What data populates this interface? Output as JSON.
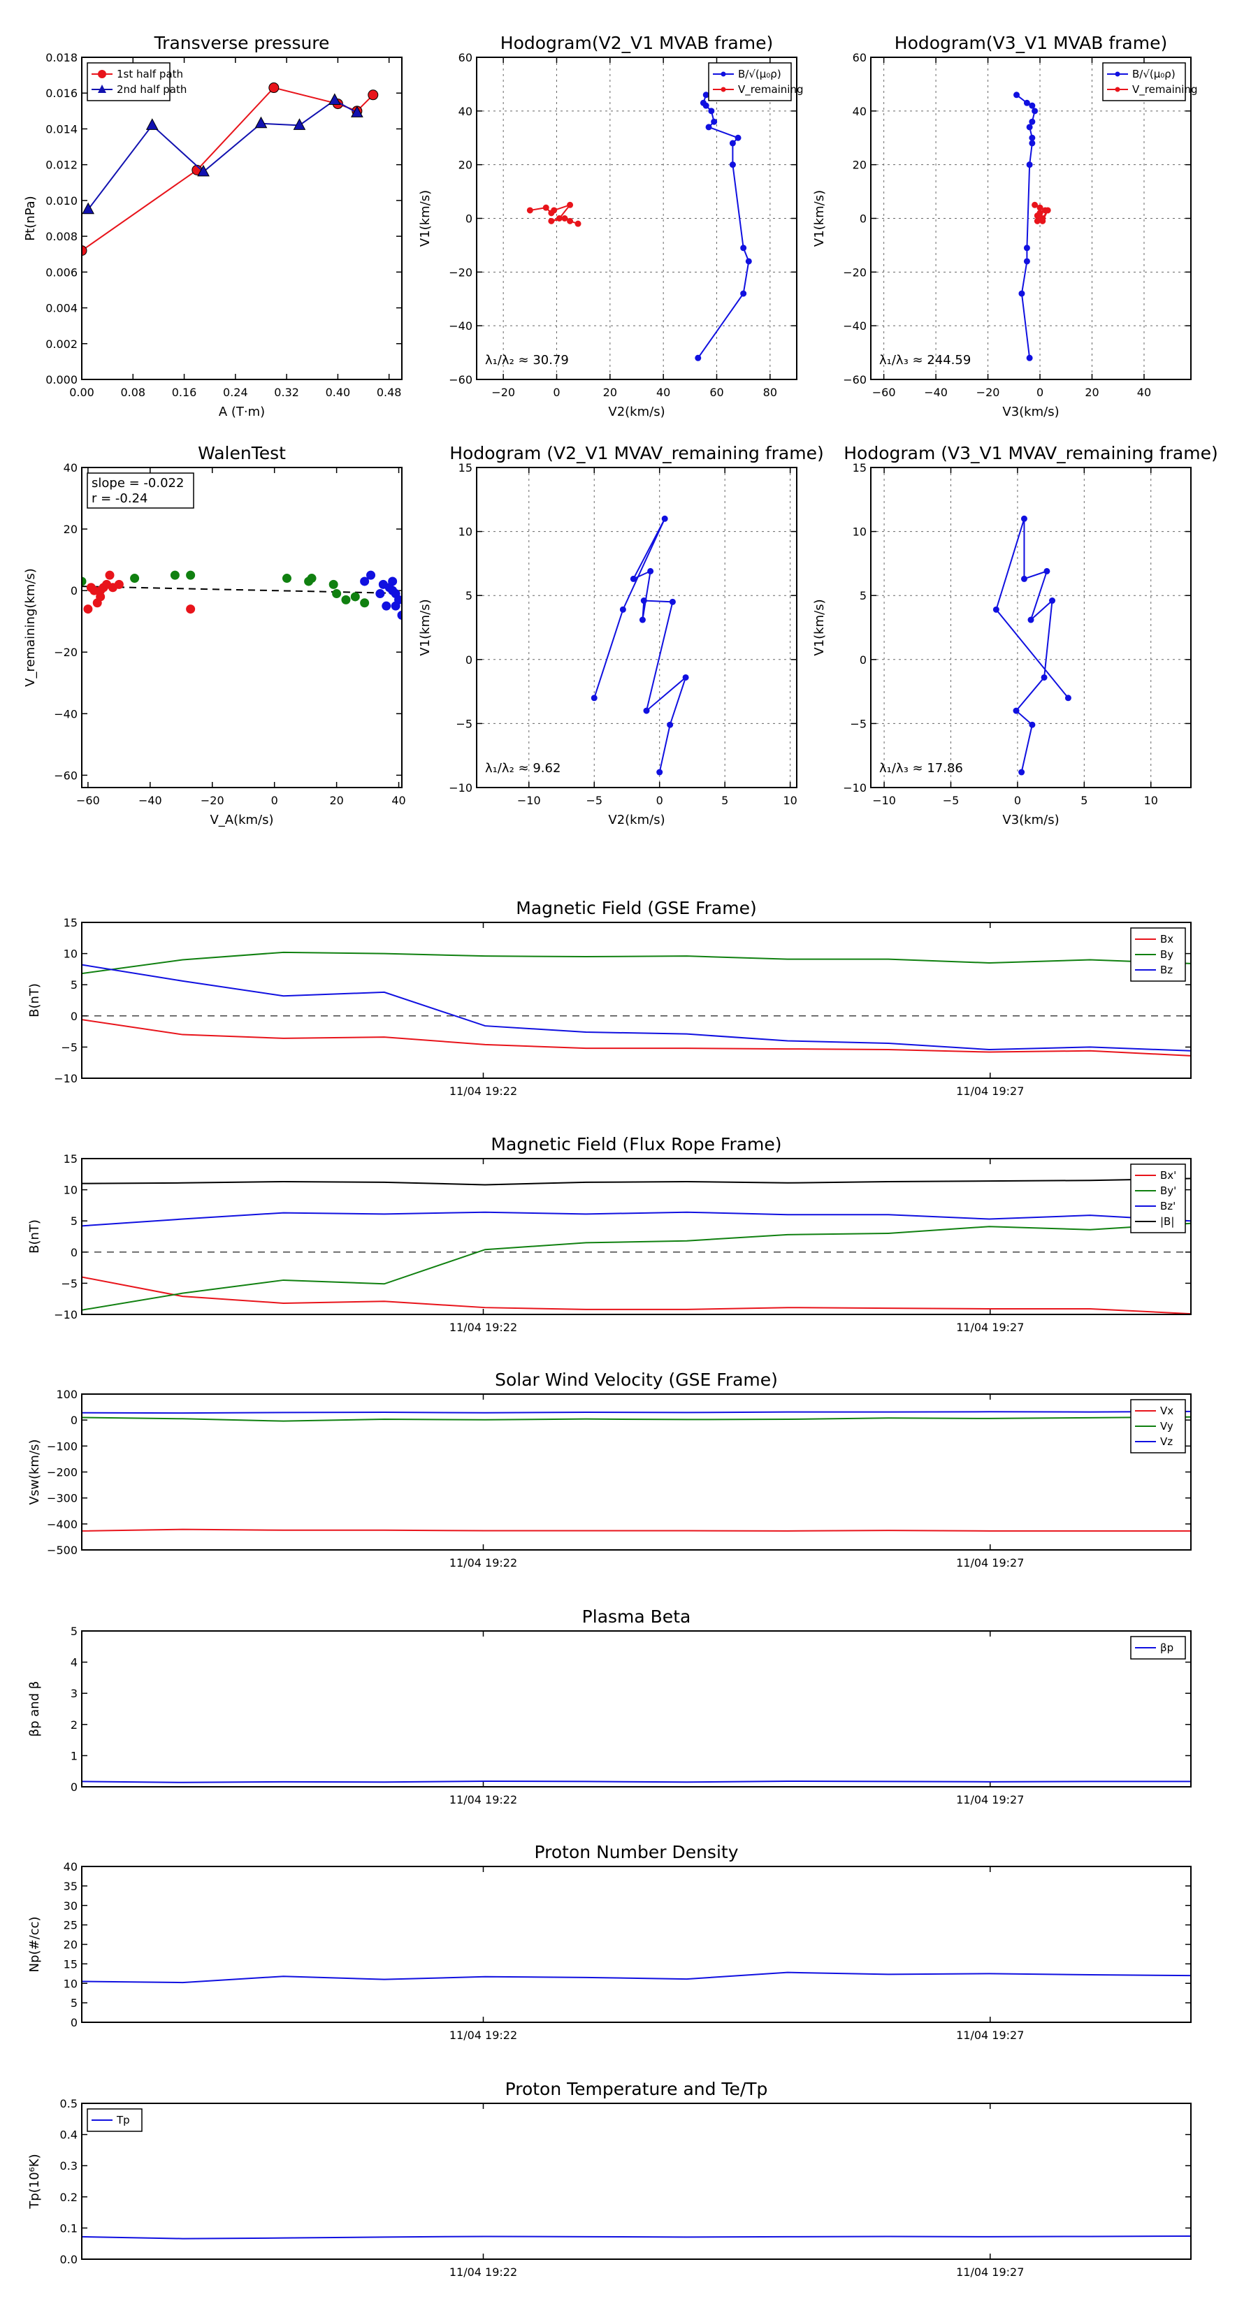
{
  "chart_data": [
    {
      "id": "p1",
      "type": "line",
      "title": "Transverse pressure",
      "xlabel": "A (T·m)",
      "ylabel": "Pt(nPa)",
      "xlim": [
        0,
        0.5
      ],
      "ylim": [
        0,
        0.018
      ],
      "xticks": [
        0,
        0.08,
        0.16,
        0.24,
        0.32,
        0.4,
        0.48
      ],
      "xticklabels": [
        "0.00",
        "0.08",
        "0.16",
        "0.24",
        "0.32",
        "0.40",
        "0.48"
      ],
      "yticks": [
        0,
        0.002,
        0.004,
        0.006,
        0.008,
        0.01,
        0.012,
        0.014,
        0.016,
        0.018
      ],
      "yticklabels": [
        "0.000",
        "0.002",
        "0.004",
        "0.006",
        "0.008",
        "0.010",
        "0.012",
        "0.014",
        "0.016",
        "0.018"
      ],
      "grid": false,
      "legend": "top-left",
      "series": [
        {
          "name": "1st half path",
          "color": "#e8141b",
          "marker": "circle",
          "x": [
            0.0,
            0.18,
            0.3,
            0.4,
            0.43,
            0.455
          ],
          "y": [
            0.0072,
            0.0117,
            0.0163,
            0.0154,
            0.015,
            0.0159
          ]
        },
        {
          "name": "2nd half path",
          "color": "#1212b0",
          "marker": "triangle",
          "x": [
            0.01,
            0.11,
            0.19,
            0.28,
            0.34,
            0.395,
            0.43
          ],
          "y": [
            0.0095,
            0.0142,
            0.0116,
            0.0143,
            0.0142,
            0.0156,
            0.0149
          ]
        }
      ]
    },
    {
      "id": "p2",
      "type": "line",
      "title": "Hodogram(V2_V1 MVAB frame)",
      "xlabel": "V2(km/s)",
      "ylabel": "V1(km/s)",
      "xlim": [
        -30,
        90
      ],
      "ylim": [
        -60,
        60
      ],
      "xticks": [
        -20,
        0,
        20,
        40,
        60,
        80
      ],
      "xticklabels": [
        "−20",
        "0",
        "20",
        "40",
        "60",
        "80"
      ],
      "yticks": [
        -60,
        -40,
        -20,
        0,
        20,
        40,
        60
      ],
      "yticklabels": [
        "−60",
        "−40",
        "−20",
        "0",
        "20",
        "40",
        "60"
      ],
      "grid": true,
      "legend": "top-right",
      "annotation": "λ₁/λ₂ ≈ 30.79",
      "series": [
        {
          "name": "B/√(μ₀ρ)",
          "color": "#1010e0",
          "x": [
            53,
            70,
            72,
            70,
            66,
            66,
            68,
            57,
            59,
            58,
            56,
            55,
            56
          ],
          "y": [
            -52,
            -28,
            -16,
            -11,
            20,
            28,
            30,
            34,
            36,
            40,
            42,
            43,
            46
          ]
        },
        {
          "name": "V_remaining",
          "color": "#e8141b",
          "x": [
            -10,
            -4,
            -2,
            -1,
            5,
            1,
            -2,
            3,
            5,
            8
          ],
          "y": [
            3,
            4,
            2,
            3,
            5,
            0,
            -1,
            0,
            -1,
            -2
          ]
        }
      ]
    },
    {
      "id": "p3",
      "type": "line",
      "title": "Hodogram(V3_V1 MVAB frame)",
      "xlabel": "V3(km/s)",
      "ylabel": "V1(km/s)",
      "xlim": [
        -65,
        58
      ],
      "ylim": [
        -60,
        60
      ],
      "xticks": [
        -60,
        -40,
        -20,
        0,
        20,
        40
      ],
      "xticklabels": [
        "−60",
        "−40",
        "−20",
        "0",
        "20",
        "40"
      ],
      "yticks": [
        -60,
        -40,
        -20,
        0,
        20,
        40,
        60
      ],
      "yticklabels": [
        "−60",
        "−40",
        "−20",
        "0",
        "20",
        "40",
        "60"
      ],
      "grid": true,
      "legend": "top-right",
      "annotation": "λ₁/λ₃ ≈ 244.59",
      "series": [
        {
          "name": "B/√(μ₀ρ)",
          "color": "#1010e0",
          "x": [
            -4,
            -7,
            -5,
            -5,
            -4,
            -3,
            -3,
            -4,
            -3,
            -2,
            -3,
            -5,
            -9
          ],
          "y": [
            -52,
            -28,
            -16,
            -11,
            20,
            28,
            30,
            34,
            36,
            40,
            42,
            43,
            46
          ]
        },
        {
          "name": "V_remaining",
          "color": "#e8141b",
          "x": [
            -2,
            0,
            2,
            0,
            -1,
            1,
            3,
            1,
            -1,
            0
          ],
          "y": [
            5,
            4,
            3,
            2,
            1,
            0,
            3,
            -1,
            -1,
            2
          ]
        }
      ]
    },
    {
      "id": "p4",
      "type": "scatter",
      "title": "WalenTest",
      "xlabel": "V_A(km/s)",
      "ylabel": "V_remaining(km/s)",
      "xlim": [
        -62,
        41
      ],
      "ylim": [
        -64,
        40
      ],
      "xticks": [
        -60,
        -40,
        -20,
        0,
        20,
        40
      ],
      "xticklabels": [
        "−60",
        "−40",
        "−20",
        "0",
        "20",
        "40"
      ],
      "yticks": [
        -60,
        -40,
        -20,
        0,
        20,
        40
      ],
      "yticklabels": [
        "−60",
        "−40",
        "−20",
        "0",
        "20",
        "40"
      ],
      "grid": false,
      "annotation_lines": [
        "slope = -0.022",
        "r = -0.24"
      ],
      "fit": {
        "slope": -0.022,
        "x": [
          -62,
          41
        ]
      },
      "series": [
        {
          "name": "",
          "color": "#e8141b",
          "x": [
            -60,
            -59,
            -58,
            -57,
            -56,
            -56,
            -55,
            -54,
            -53,
            -52,
            -50,
            -27
          ],
          "y": [
            -6,
            1,
            0,
            -4,
            -2,
            0,
            1,
            2,
            5,
            1,
            2,
            -6
          ]
        },
        {
          "name": "",
          "color": "#108010",
          "x": [
            -62,
            -45,
            -32,
            -27,
            4,
            11,
            12,
            19,
            20,
            23,
            26,
            29
          ],
          "y": [
            3,
            4,
            5,
            5,
            4,
            3,
            4,
            2,
            -1,
            -3,
            -2,
            -4
          ]
        },
        {
          "name": "",
          "color": "#1010e0",
          "x": [
            29,
            31,
            34,
            35,
            36,
            37,
            38,
            38,
            39,
            39,
            40,
            41
          ],
          "y": [
            3,
            5,
            -1,
            2,
            -5,
            1,
            0,
            3,
            -1,
            -5,
            -3,
            -8
          ]
        }
      ]
    },
    {
      "id": "p5",
      "type": "line",
      "title": "Hodogram (V2_V1 MVAV_remaining frame)",
      "xlabel": "V2(km/s)",
      "ylabel": "V1(km/s)",
      "xlim": [
        -14,
        10.5
      ],
      "ylim": [
        -10,
        15
      ],
      "xticks": [
        -10,
        -5,
        0,
        5,
        10
      ],
      "xticklabels": [
        "−10",
        "−5",
        "0",
        "5",
        "10"
      ],
      "yticks": [
        -10,
        -5,
        0,
        5,
        10,
        15
      ],
      "yticklabels": [
        "−10",
        "−5",
        "0",
        "5",
        "10",
        "15"
      ],
      "grid": true,
      "annotation": "λ₁/λ₂ ≈ 9.62",
      "series": [
        {
          "name": "",
          "color": "#1010e0",
          "x": [
            -5,
            -2.8,
            0.4,
            -2,
            -0.7,
            -1.3,
            -1.2,
            1,
            -1,
            2,
            0.8,
            0
          ],
          "y": [
            -3,
            3.9,
            11,
            6.3,
            6.9,
            3.1,
            4.6,
            4.5,
            -4,
            -1.4,
            -5.1,
            -8.8
          ]
        }
      ]
    },
    {
      "id": "p6",
      "type": "line",
      "title": "Hodogram (V3_V1 MVAV_remaining frame)",
      "xlabel": "V3(km/s)",
      "ylabel": "V1(km/s)",
      "xlim": [
        -11,
        13
      ],
      "ylim": [
        -10,
        15
      ],
      "xticks": [
        -10,
        -5,
        0,
        5,
        10
      ],
      "xticklabels": [
        "−10",
        "−5",
        "0",
        "5",
        "10"
      ],
      "yticks": [
        -10,
        -5,
        0,
        5,
        10,
        15
      ],
      "yticklabels": [
        "−10",
        "−5",
        "0",
        "5",
        "10",
        "15"
      ],
      "grid": true,
      "annotation": "λ₁/λ₃ ≈ 17.86",
      "series": [
        {
          "name": "",
          "color": "#1010e0",
          "x": [
            3.8,
            -1.6,
            0.5,
            0.5,
            2.2,
            1,
            2.6,
            2,
            -0.1,
            1.1,
            0.3
          ],
          "y": [
            -3,
            3.9,
            11,
            6.3,
            6.9,
            3.1,
            4.6,
            -1.4,
            -4,
            -5.1,
            -8.8
          ]
        }
      ]
    },
    {
      "id": "t1",
      "type": "line",
      "title": "Magnetic Field (GSE Frame)",
      "xlabel": "",
      "ylabel": "B(nT)",
      "ylim": [
        -10,
        15
      ],
      "yticks": [
        -10,
        -5,
        0,
        5,
        10,
        15
      ],
      "yticklabels": [
        "−10",
        "−5",
        "0",
        "5",
        "10",
        "15"
      ],
      "xticklabels": [
        "11/04 19:22",
        "11/04 19:27"
      ],
      "legend": "top-right",
      "zero_line": true,
      "series": [
        {
          "name": "Bx",
          "color": "#e8141b",
          "values": [
            -0.6,
            -3.0,
            -3.6,
            -3.4,
            -4.6,
            -5.2,
            -5.2,
            -5.3,
            -5.4,
            -5.8,
            -5.6,
            -6.4
          ]
        },
        {
          "name": "By",
          "color": "#108010",
          "values": [
            6.8,
            9.0,
            10.2,
            10.0,
            9.6,
            9.5,
            9.6,
            9.1,
            9.1,
            8.5,
            9.0,
            8.4
          ]
        },
        {
          "name": "Bz",
          "color": "#1010e0",
          "values": [
            8.2,
            5.6,
            3.2,
            3.8,
            -1.6,
            -2.6,
            -2.9,
            -4.0,
            -4.4,
            -5.4,
            -5.0,
            -5.6
          ]
        }
      ]
    },
    {
      "id": "t2",
      "type": "line",
      "title": "Magnetic Field (Flux Rope Frame)",
      "xlabel": "",
      "ylabel": "B(nT)",
      "ylim": [
        -10,
        15
      ],
      "yticks": [
        -10,
        -5,
        0,
        5,
        10,
        15
      ],
      "yticklabels": [
        "−10",
        "−5",
        "0",
        "5",
        "10",
        "15"
      ],
      "xticklabels": [
        "11/04 19:22",
        "11/04 19:27"
      ],
      "legend": "top-right",
      "zero_line": true,
      "series": [
        {
          "name": "Bx'",
          "color": "#e8141b",
          "values": [
            -4.0,
            -7.1,
            -8.2,
            -7.9,
            -8.9,
            -9.2,
            -9.2,
            -8.9,
            -9.0,
            -9.1,
            -9.1,
            -9.9
          ]
        },
        {
          "name": "By'",
          "color": "#108010",
          "values": [
            -9.3,
            -6.6,
            -4.5,
            -5.1,
            0.4,
            1.5,
            1.8,
            2.8,
            3.0,
            4.1,
            3.6,
            4.6
          ]
        },
        {
          "name": "Bz'",
          "color": "#1010e0",
          "values": [
            4.2,
            5.3,
            6.3,
            6.1,
            6.4,
            6.1,
            6.4,
            6.0,
            6.0,
            5.3,
            5.9,
            5.0
          ]
        },
        {
          "name": "|B|",
          "color": "#000000",
          "values": [
            11.0,
            11.1,
            11.3,
            11.2,
            10.8,
            11.2,
            11.3,
            11.1,
            11.3,
            11.4,
            11.5,
            11.8
          ]
        }
      ]
    },
    {
      "id": "t3",
      "type": "line",
      "title": "Solar Wind Velocity (GSE Frame)",
      "xlabel": "",
      "ylabel": "Vsw(km/s)",
      "ylim": [
        -500,
        100
      ],
      "yticks": [
        -500,
        -400,
        -300,
        -200,
        -100,
        0,
        100
      ],
      "yticklabels": [
        "−500",
        "−400",
        "−300",
        "−200",
        "−100",
        "0",
        "100"
      ],
      "xticklabels": [
        "11/04 19:22",
        "11/04 19:27"
      ],
      "legend": "top-right",
      "series": [
        {
          "name": "Vx",
          "color": "#e8141b",
          "values": [
            -427,
            -421,
            -424,
            -424,
            -426,
            -426,
            -426,
            -427,
            -425,
            -427,
            -427,
            -427
          ]
        },
        {
          "name": "Vy",
          "color": "#108010",
          "values": [
            10,
            5,
            -4,
            3,
            1,
            4,
            2,
            3,
            8,
            6,
            9,
            12
          ]
        },
        {
          "name": "Vz",
          "color": "#1010e0",
          "values": [
            28,
            27,
            29,
            30,
            28,
            30,
            29,
            31,
            31,
            32,
            31,
            33
          ]
        }
      ]
    },
    {
      "id": "t4",
      "type": "line",
      "title": "Plasma Beta",
      "xlabel": "",
      "ylabel": "βp and β",
      "ylim": [
        0,
        5
      ],
      "yticks": [
        0,
        1,
        2,
        3,
        4,
        5
      ],
      "yticklabels": [
        "0",
        "1",
        "2",
        "3",
        "4",
        "5"
      ],
      "xticklabels": [
        "11/04 19:22",
        "11/04 19:27"
      ],
      "legend": "top-right",
      "series": [
        {
          "name": "βp",
          "color": "#1010e0",
          "values": [
            0.17,
            0.14,
            0.16,
            0.15,
            0.18,
            0.17,
            0.15,
            0.18,
            0.17,
            0.16,
            0.17,
            0.17
          ]
        }
      ]
    },
    {
      "id": "t5",
      "type": "line",
      "title": "Proton Number Density",
      "xlabel": "",
      "ylabel": "Np(#/cc)",
      "ylim": [
        0,
        40
      ],
      "yticks": [
        0,
        5,
        10,
        15,
        20,
        25,
        30,
        35,
        40
      ],
      "yticklabels": [
        "0",
        "5",
        "10",
        "15",
        "20",
        "25",
        "30",
        "35",
        "40"
      ],
      "xticklabels": [
        "11/04 19:22",
        "11/04 19:27"
      ],
      "legend": "",
      "series": [
        {
          "name": "",
          "color": "#1010e0",
          "values": [
            10.5,
            10.2,
            11.8,
            11.0,
            11.7,
            11.5,
            11.1,
            12.8,
            12.3,
            12.5,
            12.2,
            12.0
          ]
        }
      ]
    },
    {
      "id": "t6",
      "type": "line",
      "title": "Proton Temperature and Te/Tp",
      "xlabel": "",
      "ylabel": "Tp(10⁶K)",
      "ylim": [
        0,
        0.5
      ],
      "yticks": [
        0,
        0.1,
        0.2,
        0.3,
        0.4,
        0.5
      ],
      "yticklabels": [
        "0.0",
        "0.1",
        "0.2",
        "0.3",
        "0.4",
        "0.5"
      ],
      "xticklabels": [
        "11/04 19:22",
        "11/04 19:27"
      ],
      "legend": "top-left",
      "series": [
        {
          "name": "Tp",
          "color": "#1010e0",
          "values": [
            0.072,
            0.066,
            0.068,
            0.071,
            0.073,
            0.072,
            0.071,
            0.072,
            0.073,
            0.072,
            0.073,
            0.074
          ]
        }
      ]
    }
  ]
}
